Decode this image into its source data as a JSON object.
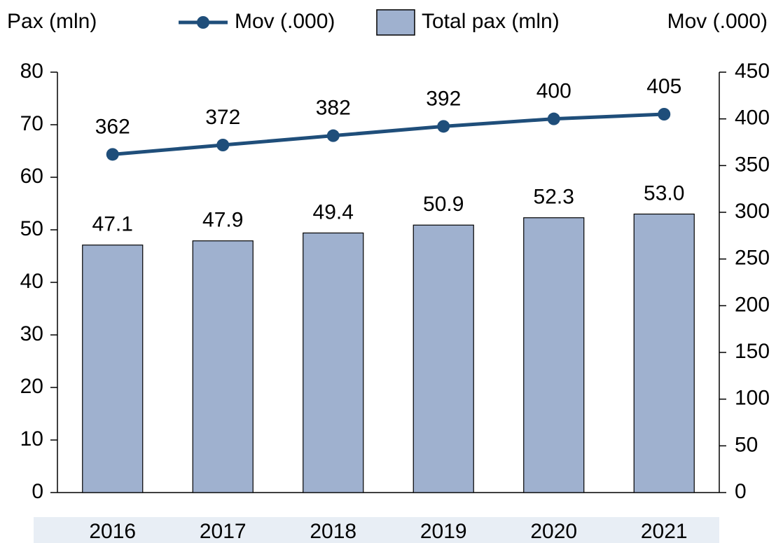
{
  "chart_data": {
    "type": "combo",
    "y_label": "Pax (mln)",
    "y2_label": "Mov (.000)",
    "categories": [
      "2016",
      "2017",
      "2018",
      "2019",
      "2020",
      "2021"
    ],
    "series": [
      {
        "name": "Mov (.000)",
        "type": "line",
        "axis": "y2",
        "color": "#1f4e7a",
        "values": [
          362,
          372,
          382,
          392,
          400,
          405
        ]
      },
      {
        "name": "Total pax (mln)",
        "type": "bar",
        "color": "#9fb1cf",
        "values": [
          47.1,
          47.9,
          49.4,
          50.9,
          52.3,
          53.0
        ],
        "value_labels": [
          "47.1",
          "47.9",
          "49.4",
          "50.9",
          "52.3",
          "53.0"
        ]
      }
    ],
    "ylim": [
      0,
      80
    ],
    "yticks": [
      0,
      10,
      20,
      30,
      40,
      50,
      60,
      70,
      80
    ],
    "y2lim": [
      0,
      450
    ],
    "y2ticks": [
      0,
      50,
      100,
      150,
      200,
      250,
      300,
      350,
      400,
      450
    ]
  }
}
